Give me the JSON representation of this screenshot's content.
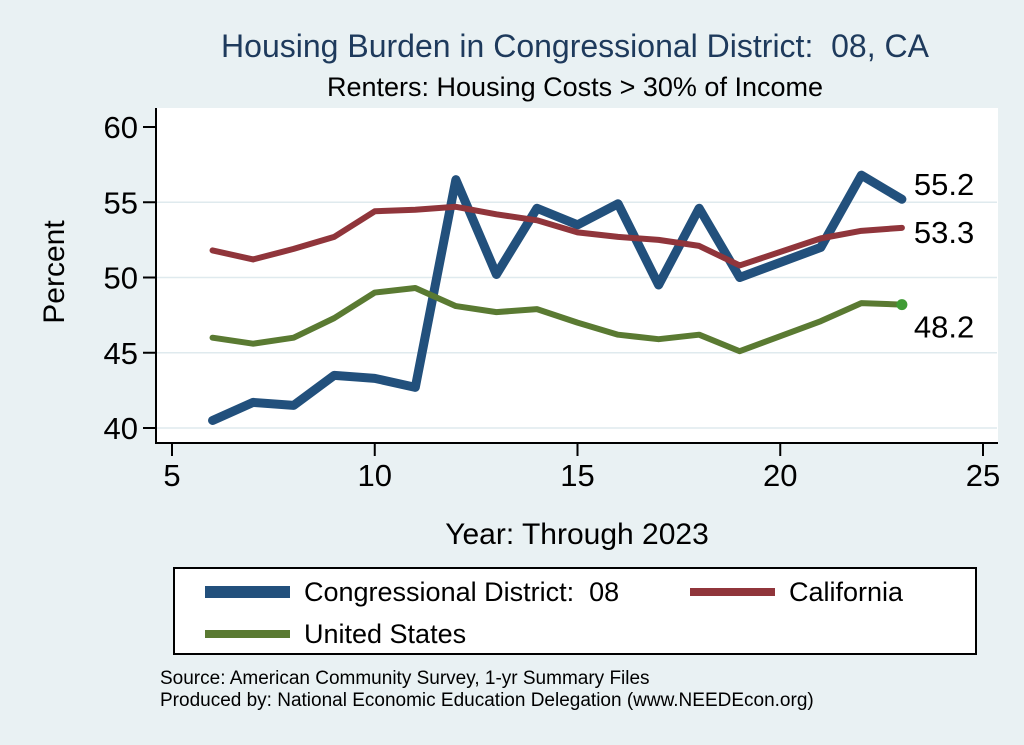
{
  "header": {
    "title": "Housing Burden in Congressional District:  08, CA",
    "subtitle": "Renters: Housing Costs > 30% of Income"
  },
  "axes": {
    "y_title": "Percent",
    "x_title": "Year: Through 2023"
  },
  "legend": {
    "items": [
      {
        "label": "Congressional District:  08"
      },
      {
        "label": "California"
      },
      {
        "label": "United States"
      }
    ]
  },
  "footer": {
    "source_line1": "Source: American Community Survey, 1-yr Summary Files",
    "source_line2": "Produced by: National Economic Education Delegation (www.NEEDEcon.org)"
  },
  "colors": {
    "page_background": "#e9f1f3",
    "plot_background": "#ffffff",
    "gridline": "#dfeaee",
    "axis": "#000000",
    "title_text": "#1e3a5c",
    "district_line": "#22507c",
    "california_line": "#90353b",
    "us_line": "#5a7a32",
    "us_end_marker": "#3f9b35"
  },
  "chart_data": {
    "type": "line",
    "title": "Housing Burden in Congressional District:  08, CA",
    "subtitle": "Renters: Housing Costs > 30% of Income",
    "xlabel": "Year: Through 2023",
    "ylabel": "Percent",
    "xlim": [
      5,
      25
    ],
    "ylim": [
      40,
      60
    ],
    "xticks": [
      5,
      10,
      15,
      20,
      25
    ],
    "yticks": [
      40,
      45,
      50,
      55,
      60
    ],
    "grid": "horizontal",
    "legend_position": "bottom",
    "x": [
      6,
      7,
      8,
      9,
      10,
      11,
      12,
      13,
      14,
      15,
      16,
      17,
      18,
      19,
      21,
      22,
      23
    ],
    "series": [
      {
        "name": "Congressional District:  08",
        "color": "#22507c",
        "line_width": 9,
        "values": [
          40.5,
          41.7,
          41.5,
          43.5,
          43.3,
          42.7,
          56.5,
          50.2,
          54.6,
          53.5,
          54.9,
          49.5,
          54.6,
          50.0,
          52.0,
          56.8,
          55.2
        ],
        "end_label": "55.2",
        "label_dy": -15
      },
      {
        "name": "California",
        "color": "#90353b",
        "line_width": 6,
        "values": [
          51.8,
          51.2,
          51.9,
          52.7,
          54.4,
          54.5,
          54.7,
          54.2,
          53.8,
          53.0,
          52.7,
          52.5,
          52.1,
          50.8,
          52.6,
          53.1,
          53.3
        ],
        "end_label": "53.3",
        "label_dy": 4
      },
      {
        "name": "United States",
        "color": "#5a7a32",
        "line_width": 6,
        "values": [
          46.0,
          45.6,
          46.0,
          47.3,
          49.0,
          49.3,
          48.1,
          47.7,
          47.9,
          47.0,
          46.2,
          45.9,
          46.2,
          45.1,
          47.1,
          48.3,
          48.2
        ],
        "end_label": "48.2",
        "label_dy": 22,
        "end_marker": true,
        "marker_color": "#3f9b35"
      }
    ]
  }
}
